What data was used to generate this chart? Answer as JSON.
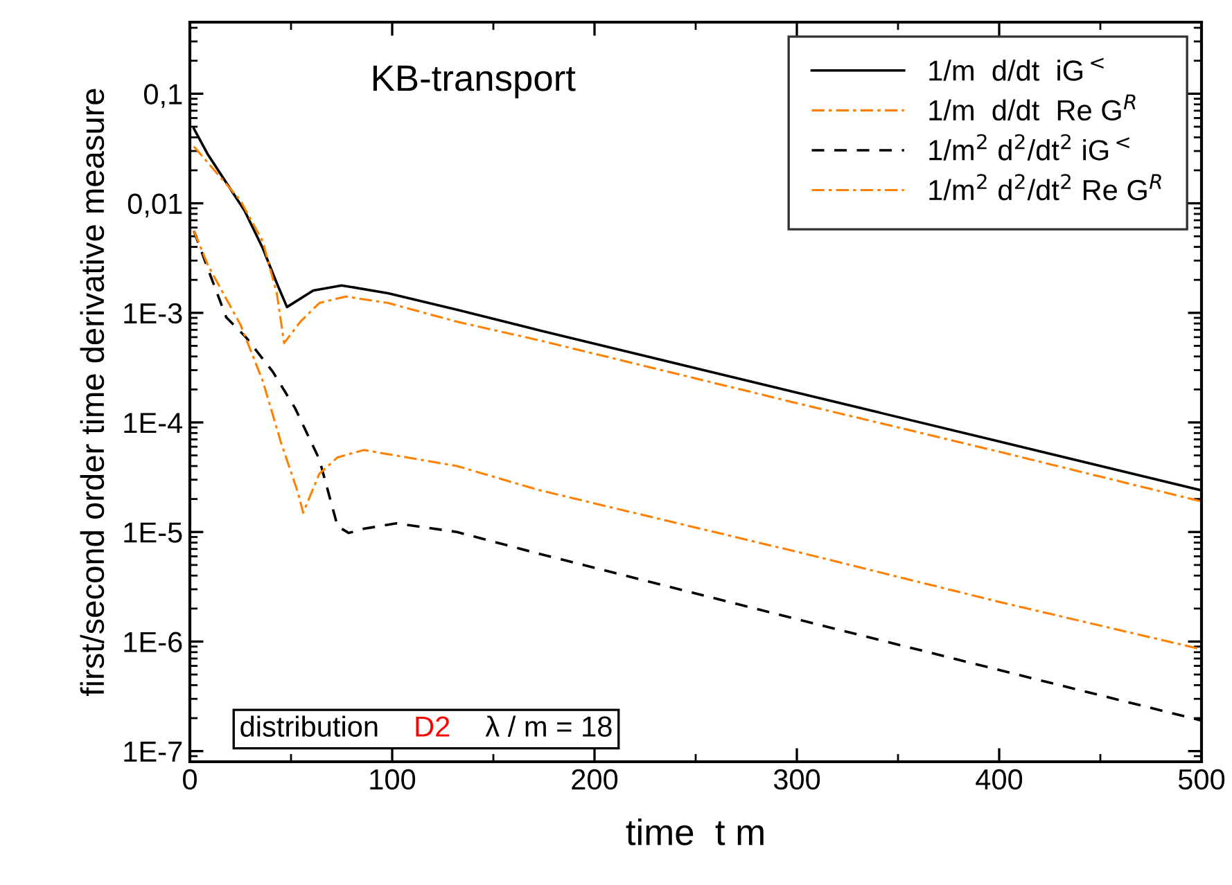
{
  "chart_data": {
    "type": "line",
    "title": "KB-transport",
    "xlabel": "time  t m",
    "ylabel": "first/second order time derivative measure",
    "log": "y",
    "xlim": [
      0,
      500
    ],
    "xticks": [
      0,
      100,
      200,
      300,
      400,
      500
    ],
    "ylim": [
      8e-08,
      0.45
    ],
    "yticks": [
      {
        "value": 0.1,
        "label": "0,1"
      },
      {
        "value": 0.01,
        "label": "0,01"
      },
      {
        "value": 0.001,
        "label": "1E-3"
      },
      {
        "value": 0.0001,
        "label": "1E-4"
      },
      {
        "value": 1e-05,
        "label": "1E-5"
      },
      {
        "value": 1e-06,
        "label": "1E-6"
      },
      {
        "value": 1e-07,
        "label": "1E-7"
      }
    ],
    "grid": false,
    "legend": "top right",
    "marker": "none",
    "annotations": [
      "distribution",
      "D2",
      "λ / m = 18"
    ],
    "series": [
      {
        "name": "1/m  d/dt  iG$^{<}$",
        "color": "#000000",
        "line_style": "solid",
        "x": [
          2,
          9,
          27,
          36,
          43,
          48,
          61,
          75,
          98,
          132,
          173,
          300,
          400,
          500
        ],
        "values": [
          0.048,
          0.0277,
          0.0086,
          0.0039,
          0.00186,
          0.00113,
          0.0016,
          0.00178,
          0.00151,
          0.00107,
          0.00069,
          0.000187,
          6.7e-05,
          2.4e-05
        ]
      },
      {
        "name": "1/m  d/dt  Re G$^{R}$",
        "color": "#ff8000",
        "line_style": "dashdot",
        "x": [
          2,
          25,
          36,
          43,
          46.6,
          54.6,
          64,
          77,
          98,
          132,
          173,
          300,
          400,
          500
        ],
        "values": [
          0.033,
          0.0106,
          0.0045,
          0.0015,
          0.00053,
          0.00083,
          0.00123,
          0.00141,
          0.00123,
          0.00083,
          0.00056,
          0.00015,
          5.4e-05,
          1.9e-05
        ]
      },
      {
        "name": "1/m$^{2}$ d$^{2}$/dt$^{2}$ iG$^{<}$",
        "color": "#000000",
        "line_style": "dashed",
        "x": [
          2,
          9,
          18,
          28,
          41,
          52,
          64,
          73,
          78.5,
          86,
          102,
          132,
          173,
          300,
          400,
          500
        ],
        "values": [
          0.0056,
          0.0025,
          0.00091,
          0.00059,
          0.00029,
          0.000135,
          4.6e-05,
          1.13e-05,
          9.8e-06,
          1.07e-05,
          1.2e-05,
          1e-05,
          6.3e-06,
          1.6e-06,
          5.5e-07,
          1.9e-07
        ]
      },
      {
        "name": "1/m$^{2}$ d$^{2}$/dt$^{2}$ Re G$^{R}$",
        "color": "#ff8000",
        "line_style": "dashdot",
        "x": [
          2,
          9,
          25,
          36,
          45,
          53.4,
          56,
          64,
          73,
          86,
          132,
          173,
          300,
          400,
          500
        ],
        "values": [
          0.0056,
          0.0027,
          0.00078,
          0.00024,
          6.6e-05,
          2.3e-05,
          1.5e-05,
          3.4e-05,
          4.8e-05,
          5.6e-05,
          4e-05,
          2.4e-05,
          6.6e-06,
          2.3e-06,
          8.5e-07
        ]
      }
    ]
  }
}
